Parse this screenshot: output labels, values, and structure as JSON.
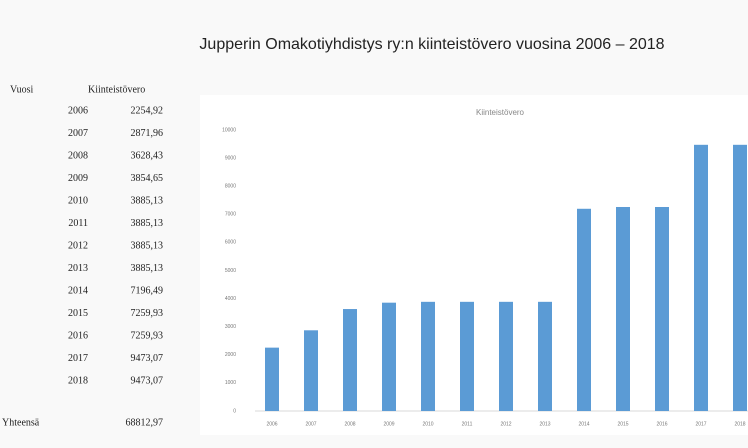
{
  "title": "Jupperin Omakotiyhdistys ry:n kiinteistövero vuosina 2006 – 2018",
  "table": {
    "headers": [
      "Vuosi",
      "Kiinteistövero"
    ],
    "rows": [
      [
        "2006",
        "2254,92"
      ],
      [
        "2007",
        "2871,96"
      ],
      [
        "2008",
        "3628,43"
      ],
      [
        "2009",
        "3854,65"
      ],
      [
        "2010",
        "3885,13"
      ],
      [
        "2011",
        "3885,13"
      ],
      [
        "2012",
        "3885,13"
      ],
      [
        "2013",
        "3885,13"
      ],
      [
        "2014",
        "7196,49"
      ],
      [
        "2015",
        "7259,93"
      ],
      [
        "2016",
        "7259,93"
      ],
      [
        "2017",
        "9473,07"
      ],
      [
        "2018",
        "9473,07"
      ]
    ],
    "total": [
      "Yhteensä",
      "68812,97"
    ]
  },
  "chart_data": {
    "type": "bar",
    "title": "Kiinteistövero",
    "categories": [
      "2006",
      "2007",
      "2008",
      "2009",
      "2010",
      "2011",
      "2012",
      "2013",
      "2014",
      "2015",
      "2016",
      "2017",
      "2018"
    ],
    "values": [
      2254.92,
      2871.96,
      3628.43,
      3854.65,
      3885.13,
      3885.13,
      3885.13,
      3885.13,
      7196.49,
      7259.93,
      7259.93,
      9473.07,
      9473.07
    ],
    "color": "#5b9bd5",
    "ylim": [
      0,
      10000
    ],
    "yticks": [
      0,
      1000,
      2000,
      3000,
      4000,
      5000,
      6000,
      7000,
      8000,
      9000,
      10000
    ],
    "grid": false
  }
}
